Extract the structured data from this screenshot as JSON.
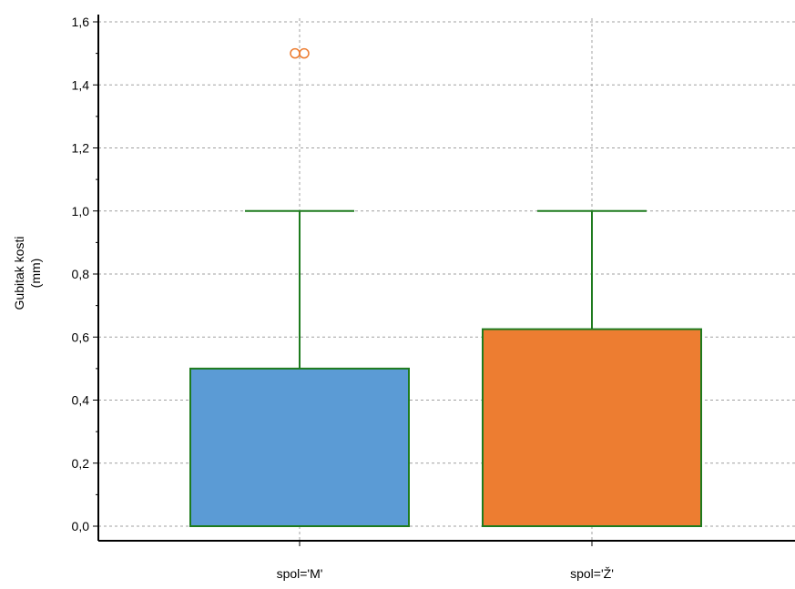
{
  "chart_data": {
    "type": "boxplot",
    "ylabel_line1": "Gubitak kosti",
    "ylabel_line2": "(mm)",
    "ylim": [
      0,
      1.6
    ],
    "yticks": [
      {
        "value": 0.0,
        "label": "0,0"
      },
      {
        "value": 0.2,
        "label": "0,2"
      },
      {
        "value": 0.4,
        "label": "0,4"
      },
      {
        "value": 0.6,
        "label": "0,6"
      },
      {
        "value": 0.8,
        "label": "0,8"
      },
      {
        "value": 1.0,
        "label": "1,0"
      },
      {
        "value": 1.2,
        "label": "1,2"
      },
      {
        "value": 1.4,
        "label": "1,4"
      },
      {
        "value": 1.6,
        "label": "1,6"
      }
    ],
    "grid": true,
    "categories": [
      "spol='M'",
      "spol='Ž'"
    ],
    "boxes": [
      {
        "category": "spol='M'",
        "q1": 0.0,
        "median": 0.0,
        "q3": 0.5,
        "whisker_low": 0.0,
        "whisker_high": 1.0,
        "outliers": [
          1.5,
          1.5
        ],
        "color": "#5B9BD5"
      },
      {
        "category": "spol='Ž'",
        "q1": 0.0,
        "median": 0.0,
        "q3": 0.625,
        "whisker_low": 0.0,
        "whisker_high": 1.0,
        "outliers": [],
        "color": "#ED7D31"
      }
    ],
    "colors": {
      "box_stroke": "#1E7B1E",
      "outlier": "#ED7D31",
      "axis": "#000000",
      "grid": "#A0A0A0"
    }
  }
}
